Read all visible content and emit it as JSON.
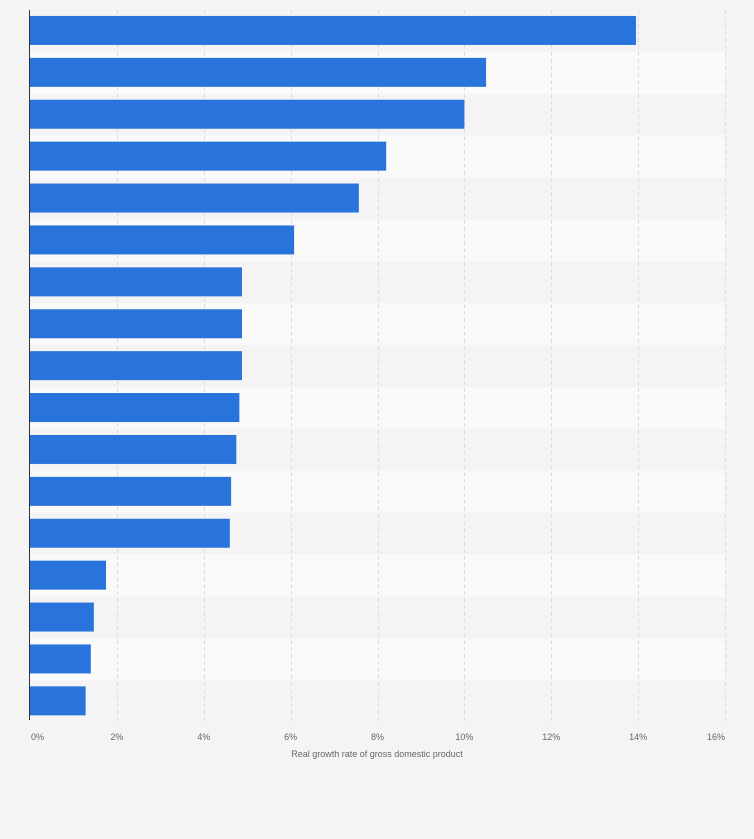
{
  "chart_data": {
    "type": "bar",
    "orientation": "horizontal",
    "title": "",
    "xlabel": "Real growth rate of gross domestic product",
    "ylabel": "",
    "categories": [
      "",
      "",
      "",
      "",
      "",
      "",
      "",
      "",
      "",
      "",
      "",
      "",
      "",
      "",
      "",
      "",
      ""
    ],
    "values": [
      13.95,
      10.5,
      10.0,
      8.2,
      7.57,
      6.08,
      4.88,
      4.88,
      4.88,
      4.82,
      4.75,
      4.63,
      4.6,
      1.75,
      1.47,
      1.4,
      1.28
    ],
    "xlim": [
      0,
      16
    ],
    "ticks": [
      0,
      2,
      4,
      6,
      8,
      10,
      12,
      14,
      16
    ],
    "tick_labels": [
      "0%",
      "2%",
      "4%",
      "6%",
      "8%",
      "10%",
      "12%",
      "14%",
      "16%"
    ],
    "grid": true,
    "bar_color": "#2874dc",
    "row_stripe_colors": [
      "#f4f4f4",
      "#fafafa"
    ],
    "background_color": "#f4f4f4"
  }
}
